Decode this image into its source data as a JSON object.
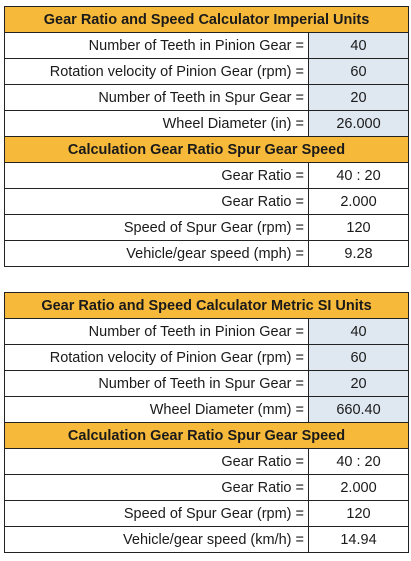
{
  "sections": [
    {
      "title": "Gear Ratio and Speed Calculator Imperial Units",
      "inputs": [
        {
          "label": "Number of Teeth in Pinion Gear =",
          "value": "40"
        },
        {
          "label": "Rotation velocity of Pinion Gear (rpm) =",
          "value": "60"
        },
        {
          "label": "Number of Teeth in Spur Gear =",
          "value": "20"
        },
        {
          "label": "Wheel Diameter (in) =",
          "value": "26.000"
        }
      ],
      "results_title": "Calculation Gear Ratio Spur Gear Speed",
      "results": [
        {
          "label": "Gear Ratio =",
          "value": "40 : 20"
        },
        {
          "label": "Gear Ratio =",
          "value": "2.000"
        },
        {
          "label": "Speed of Spur Gear (rpm) =",
          "value": "120"
        },
        {
          "label": "Vehicle/gear speed (mph) =",
          "value": "9.28"
        }
      ]
    },
    {
      "title": "Gear Ratio and Speed Calculator Metric SI Units",
      "inputs": [
        {
          "label": "Number of Teeth in Pinion Gear =",
          "value": "40"
        },
        {
          "label": "Rotation velocity of Pinion Gear (rpm) =",
          "value": "60"
        },
        {
          "label": "Number of Teeth in Spur Gear =",
          "value": "20"
        },
        {
          "label": "Wheel Diameter (mm) =",
          "value": "660.40"
        }
      ],
      "results_title": "Calculation Gear Ratio Spur Gear Speed",
      "results": [
        {
          "label": "Gear Ratio =",
          "value": "40 : 20"
        },
        {
          "label": "Gear Ratio =",
          "value": "2.000"
        },
        {
          "label": "Speed of Spur Gear (rpm) =",
          "value": "120"
        },
        {
          "label": "Vehicle/gear speed (km/h) =",
          "value": "14.94"
        }
      ]
    }
  ],
  "colors": {
    "header": "#f6b93a",
    "input_cell": "#dfe7f1",
    "border": "#222222"
  }
}
